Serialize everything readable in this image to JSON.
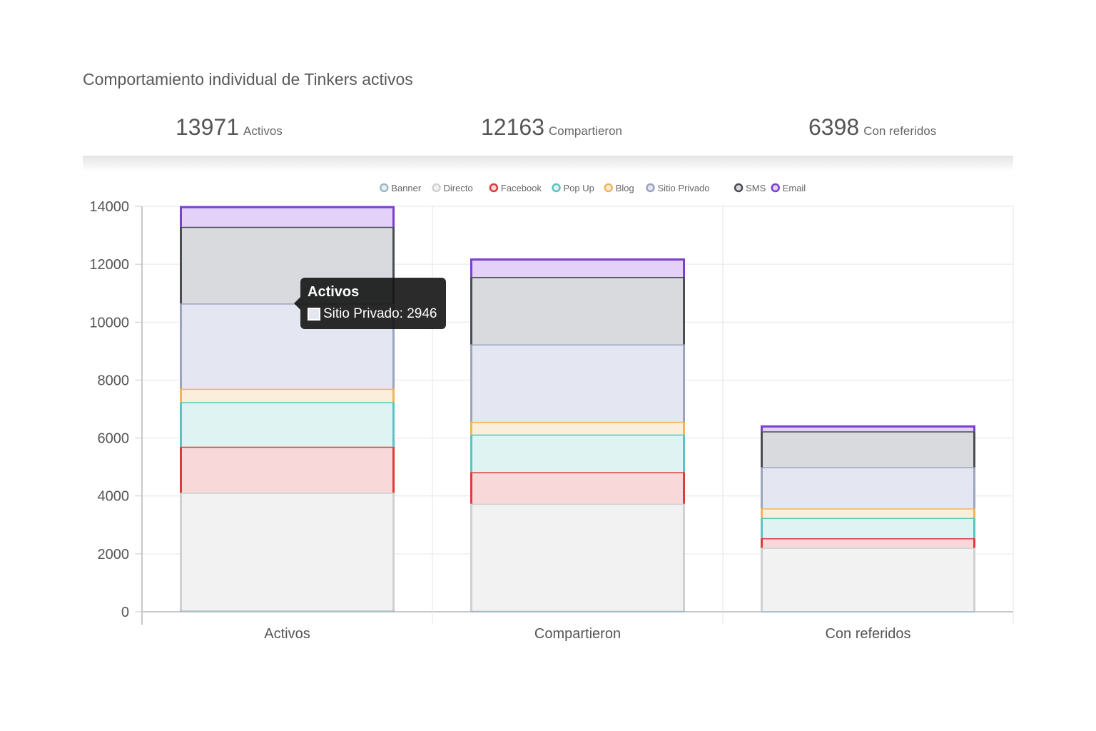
{
  "header": {
    "title": "Comportamiento individual de Tinkers activos"
  },
  "kpis": [
    {
      "value": "13971",
      "label": "Activos"
    },
    {
      "value": "12163",
      "label": "Compartieron"
    },
    {
      "value": "6398",
      "label": "Con referidos"
    }
  ],
  "tooltip": {
    "title": "Activos",
    "label": "Sitio Privado: 2946"
  },
  "colors": {
    "Banner": {
      "stroke": "#9bb8c8",
      "fill": "#e8f0f4"
    },
    "Directo": {
      "stroke": "#d0d0d0",
      "fill": "#f2f2f2"
    },
    "Facebook": {
      "stroke": "#dc3c3c",
      "fill": "#f8d8d8"
    },
    "Pop Up": {
      "stroke": "#5bc4c0",
      "fill": "#dff3f3"
    },
    "Blog": {
      "stroke": "#f2b45a",
      "fill": "#fbeedb"
    },
    "Sitio Privado": {
      "stroke": "#9ca4bc",
      "fill": "#e4e7f2"
    },
    "SMS": {
      "stroke": "#4a4d52",
      "fill": "#d8dadd"
    },
    "Email": {
      "stroke": "#7b3fd0",
      "fill": "#e3d1f8"
    }
  },
  "chart_data": {
    "type": "bar",
    "stacked": true,
    "categories": [
      "Activos",
      "Compartieron",
      "Con referidos"
    ],
    "series": [
      {
        "name": "Banner",
        "values": [
          40,
          30,
          20
        ]
      },
      {
        "name": "Directo",
        "values": [
          4070,
          3700,
          2190
        ]
      },
      {
        "name": "Facebook",
        "values": [
          1590,
          1090,
          330
        ]
      },
      {
        "name": "Pop Up",
        "values": [
          1540,
          1300,
          700
        ]
      },
      {
        "name": "Blog",
        "values": [
          460,
          440,
          330
        ]
      },
      {
        "name": "Sitio Privado",
        "values": [
          2946,
          2670,
          1420
        ]
      },
      {
        "name": "SMS",
        "values": [
          2645,
          2330,
          1240
        ]
      },
      {
        "name": "Email",
        "values": [
          680,
          603,
          168
        ]
      }
    ],
    "ylim": [
      0,
      14000
    ],
    "yticks": [
      0,
      2000,
      4000,
      6000,
      8000,
      10000,
      12000,
      14000
    ],
    "grid": true,
    "legend_position": "top"
  }
}
